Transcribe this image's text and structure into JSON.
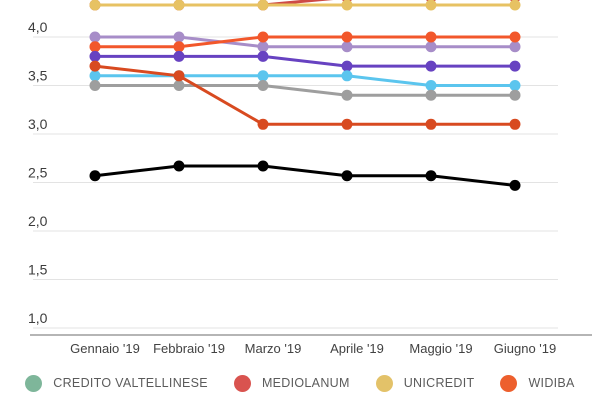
{
  "chart_data": {
    "type": "line",
    "title": "",
    "xlabel": "",
    "ylabel": "",
    "categories": [
      "Gennaio '19",
      "Febbraio '19",
      "Marzo '19",
      "Aprile '19",
      "Maggio '19",
      "Giugno '19"
    ],
    "y_ticks": [
      {
        "label": "4,0",
        "value": 4.0
      },
      {
        "label": "3,5",
        "value": 3.5
      },
      {
        "label": "3,0",
        "value": 3.0
      },
      {
        "label": "2,5",
        "value": 2.5
      },
      {
        "label": "2,0",
        "value": 2.0
      },
      {
        "label": "1,5",
        "value": 1.5
      },
      {
        "label": "1,0",
        "value": 1.0
      }
    ],
    "ylim_visible": [
      0.95,
      4.38
    ],
    "grid": true,
    "decimal_separator": "comma",
    "note": "Chart is cropped at the top (values above ~4.38 cut off); legend strip shows 4 of the series names",
    "series": [
      {
        "name": "mediolanum",
        "color": "#ce4a46",
        "values": [
          4.33,
          4.33,
          4.33,
          4.41,
          4.41,
          4.41
        ],
        "note": "hidden behind UNICREDIT Gen-Mar, dots clipped by top edge Apr-Giu"
      },
      {
        "name": "unicredit",
        "color": "#e7c263",
        "values": [
          4.33,
          4.33,
          4.33,
          4.33,
          4.33,
          4.33
        ]
      },
      {
        "name": "series-light-purple",
        "color": "#a78dc8",
        "values": [
          4.0,
          4.0,
          3.9,
          3.9,
          3.9,
          3.9
        ]
      },
      {
        "name": "widiba",
        "color": "#f2572b",
        "values": [
          3.9,
          3.9,
          4.0,
          4.0,
          4.0,
          4.0
        ]
      },
      {
        "name": "series-violet",
        "color": "#6742c1",
        "values": [
          3.8,
          3.8,
          3.8,
          3.7,
          3.7,
          3.7
        ]
      },
      {
        "name": "series-light-blue",
        "color": "#5bc5ee",
        "values": [
          3.6,
          3.6,
          3.6,
          3.6,
          3.5,
          3.5
        ]
      },
      {
        "name": "series-gray",
        "color": "#9e9e9e",
        "values": [
          3.5,
          3.5,
          3.5,
          3.4,
          3.4,
          3.4
        ]
      },
      {
        "name": "series-dark-red",
        "color": "#d84a20",
        "values": [
          3.7,
          3.6,
          3.1,
          3.1,
          3.1,
          3.1
        ]
      },
      {
        "name": "series-black",
        "color": "#000000",
        "values": [
          2.57,
          2.67,
          2.67,
          2.57,
          2.57,
          2.47
        ]
      }
    ],
    "legend_position": "bottom",
    "legend": [
      {
        "label": "CREDITO VALTELLINESE",
        "color": "#7eb69a"
      },
      {
        "label": "MEDIOLANUM",
        "color": "#d9534f"
      },
      {
        "label": "UNICREDIT",
        "color": "#e3c269"
      },
      {
        "label": "WIDIBA",
        "color": "#ed5f2d"
      }
    ]
  }
}
